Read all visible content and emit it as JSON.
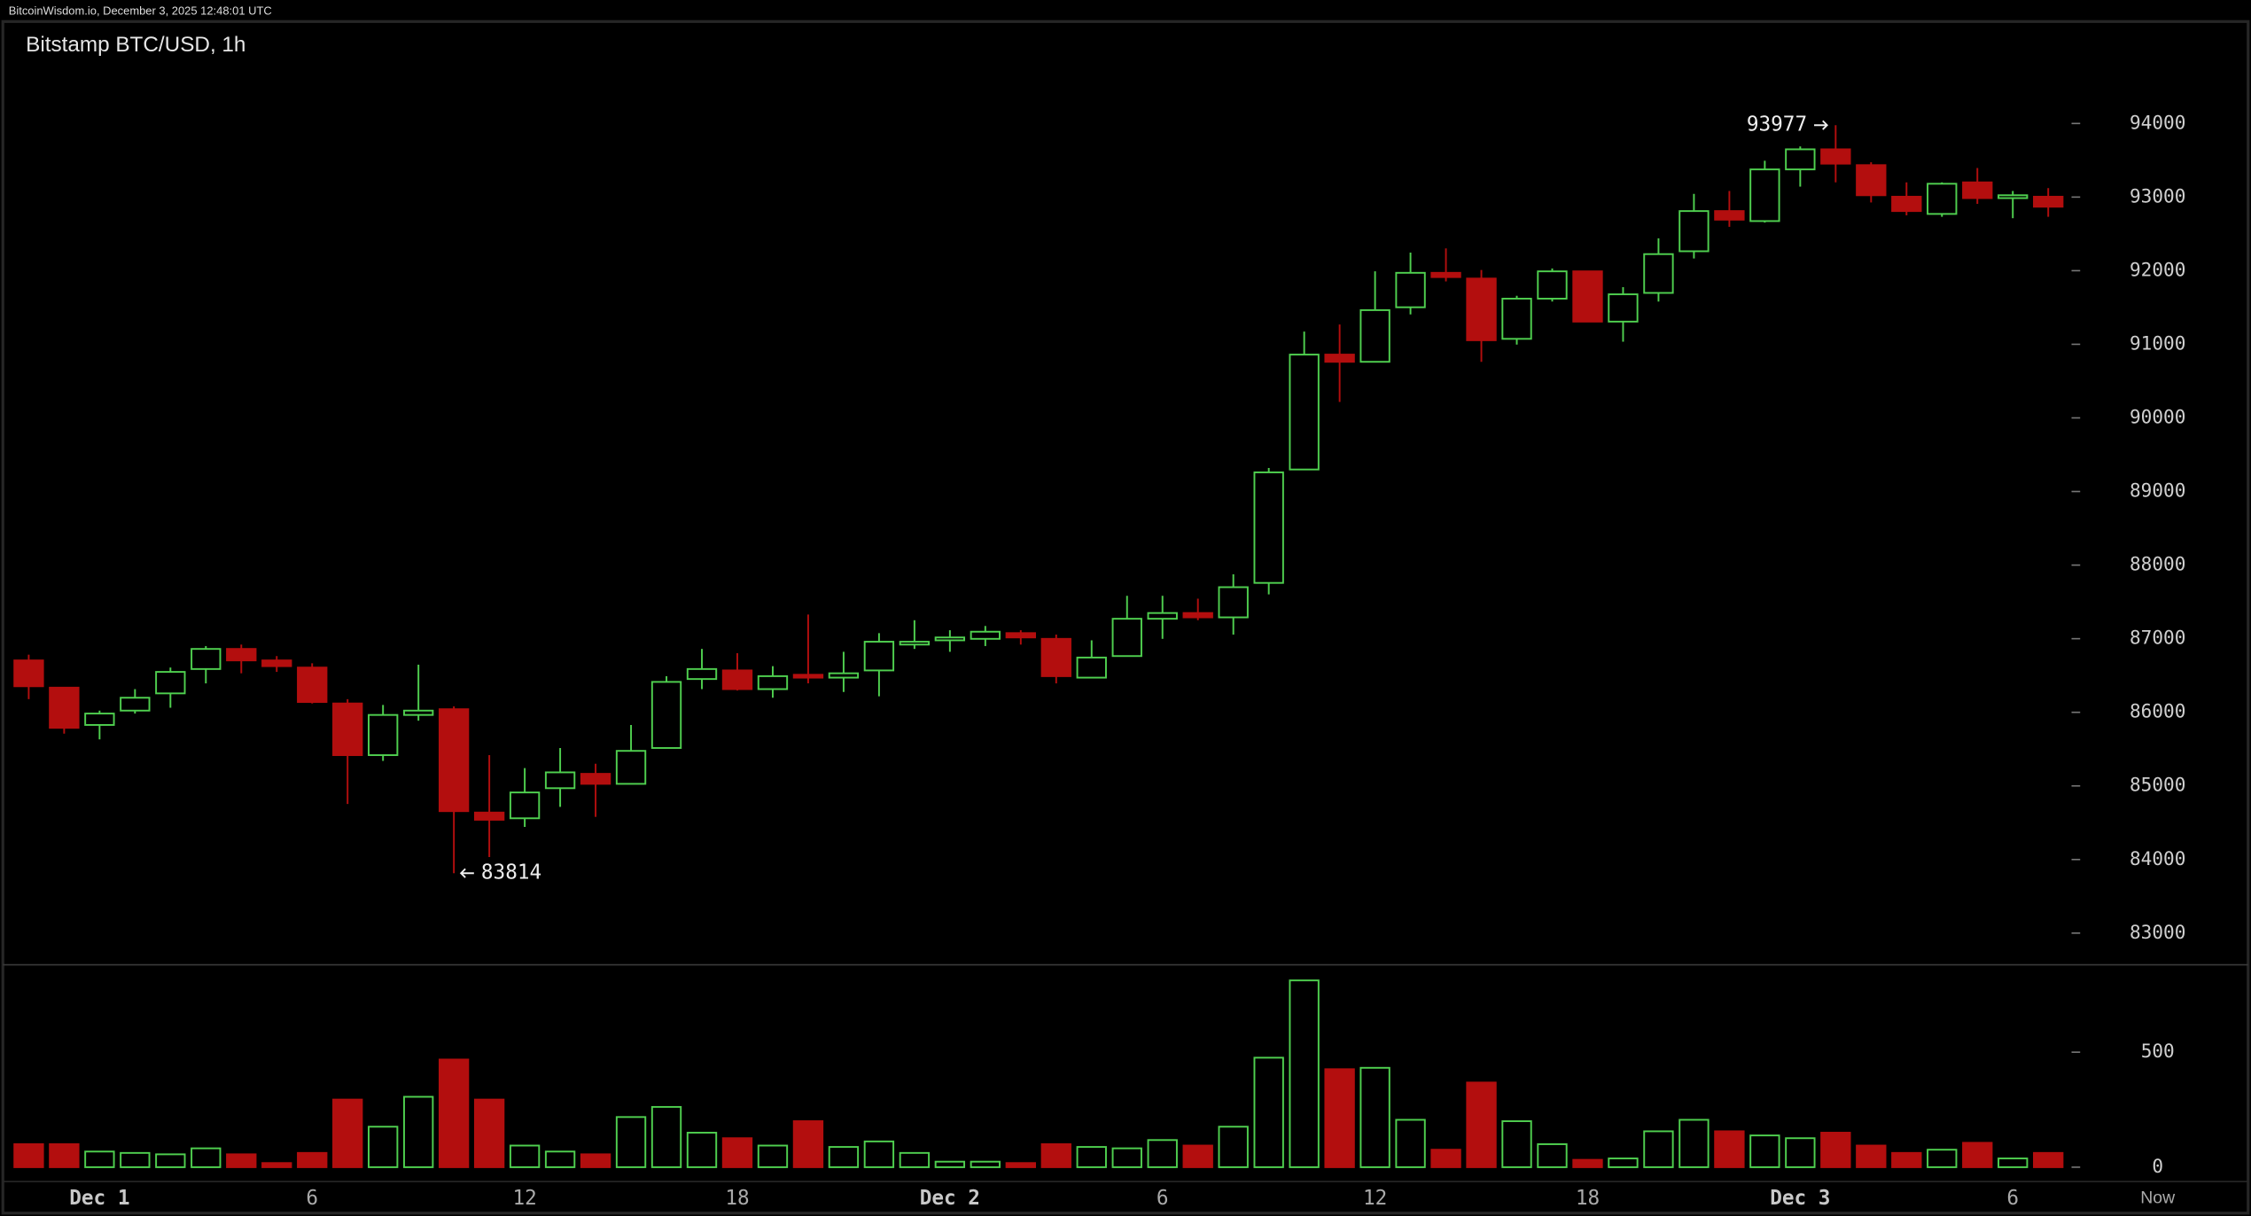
{
  "chart_data": {
    "type": "candlestick",
    "header": "BitcoinWisdom.io, December 3, 2025 12:48:01 UTC",
    "title": "Bitstamp BTC/USD, 1h",
    "categories": [
      null,
      null,
      "Dec 1",
      null,
      null,
      null,
      null,
      null,
      "6",
      null,
      null,
      null,
      null,
      null,
      "12",
      null,
      null,
      null,
      null,
      null,
      "18",
      null,
      null,
      null,
      null,
      null,
      "Dec 2",
      null,
      null,
      null,
      null,
      null,
      "6",
      null,
      null,
      null,
      null,
      null,
      "12",
      null,
      null,
      null,
      null,
      null,
      "18",
      null,
      null,
      null,
      null,
      null,
      "Dec 3",
      null,
      null,
      null,
      null,
      null,
      "6",
      null
    ],
    "now_label": "Now",
    "open": [
      86705,
      86335,
      85828,
      86023,
      86257,
      86588,
      86861,
      86705,
      86608,
      86120,
      85418,
      85964,
      86042,
      84638,
      84560,
      84969,
      85164,
      85028,
      85515,
      86452,
      86569,
      86315,
      86510,
      86471,
      86569,
      86920,
      86978,
      86998,
      87076,
      86998,
      86471,
      86764,
      87271,
      87349,
      87290,
      87758,
      89299,
      90860,
      90762,
      91503,
      91971,
      91893,
      91074,
      91620,
      91991,
      91308,
      91698,
      92264,
      92810,
      92674,
      93376,
      93649,
      93434,
      93005,
      92771,
      93200,
      92986,
      93005
    ],
    "high": [
      86783,
      86335,
      86023,
      86315,
      86608,
      86900,
      86920,
      86764,
      86666,
      86179,
      86100,
      86647,
      86081,
      85418,
      85242,
      85515,
      85301,
      85828,
      86491,
      86861,
      86803,
      86627,
      87329,
      86822,
      87076,
      87251,
      87115,
      87173,
      87115,
      87056,
      86978,
      87583,
      87583,
      87544,
      87875,
      89319,
      91172,
      91269,
      91991,
      92245,
      92303,
      92010,
      91659,
      92030,
      91991,
      91776,
      92440,
      93044,
      93083,
      93493,
      93688,
      93977,
      93473,
      93200,
      93200,
      93395,
      93083,
      93122
    ],
    "low": [
      86179,
      85710,
      85632,
      85983,
      86062,
      86393,
      86530,
      86549,
      86120,
      84755,
      85340,
      85886,
      83814,
      84033,
      84443,
      84716,
      84579,
      85028,
      85515,
      86315,
      86296,
      86198,
      86393,
      86276,
      86218,
      86861,
      86822,
      86900,
      86920,
      86393,
      86471,
      86764,
      86998,
      87251,
      87056,
      87602,
      89299,
      90216,
      90762,
      91406,
      91854,
      90762,
      90996,
      91581,
      91308,
      91035,
      91581,
      92166,
      92596,
      92654,
      93142,
      93200,
      92927,
      92752,
      92732,
      92908,
      92713,
      92732
    ],
    "close": [
      86354,
      85789,
      85983,
      86198,
      86549,
      86861,
      86705,
      86627,
      86140,
      85418,
      85964,
      86023,
      84657,
      84540,
      84911,
      85184,
      85028,
      85476,
      86413,
      86588,
      86315,
      86491,
      86471,
      86530,
      86959,
      86959,
      87017,
      87095,
      87017,
      86491,
      86744,
      87271,
      87349,
      87290,
      87700,
      89260,
      90860,
      90762,
      91464,
      91971,
      91913,
      91055,
      91620,
      91991,
      91308,
      91679,
      92225,
      92810,
      92693,
      93376,
      93649,
      93454,
      93025,
      92810,
      93181,
      92986,
      93025,
      92869
    ],
    "volume": [
      100,
      100,
      68,
      62,
      56,
      82,
      56,
      18,
      62,
      294,
      176,
      306,
      468,
      294,
      94,
      68,
      56,
      218,
      262,
      150,
      126,
      94,
      200,
      88,
      112,
      62,
      24,
      24,
      18,
      100,
      88,
      82,
      118,
      94,
      176,
      476,
      812,
      426,
      432,
      206,
      76,
      368,
      200,
      100,
      32,
      38,
      156,
      206,
      156,
      138,
      126,
      150,
      94,
      62,
      76,
      106,
      38,
      62
    ],
    "up_color": "#4fcf4f",
    "down_color": "#b30e0e",
    "ylim": [
      82570,
      95385
    ],
    "yticks": [
      83000,
      84000,
      85000,
      86000,
      87000,
      88000,
      89000,
      90000,
      91000,
      92000,
      93000,
      94000
    ],
    "volume_ylim": [
      0,
      880
    ],
    "volume_yticks": [
      0,
      500
    ],
    "max_index": 51,
    "min_index": 12
  }
}
